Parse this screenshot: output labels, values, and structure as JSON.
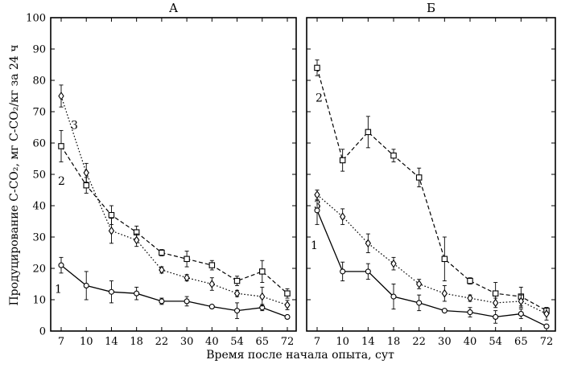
{
  "chart_data": [
    {
      "type": "line",
      "title": "А",
      "xlabel": "Время после начала опыта, сут",
      "ylabel": "Продуцирование С-СО₂, мг С-СО₂/кг за 24 ч",
      "categories": [
        "7",
        "10",
        "14",
        "18",
        "22",
        "30",
        "40",
        "54",
        "65",
        "72"
      ],
      "ylim": [
        0,
        100
      ],
      "yticks": [
        "0",
        "10",
        "20",
        "30",
        "40",
        "50",
        "60",
        "70",
        "80",
        "90",
        "100"
      ],
      "grid": false,
      "series": [
        {
          "name": "1",
          "marker": "circle",
          "dash": "solid",
          "values": [
            21,
            14.5,
            12.5,
            12,
            9.5,
            9.5,
            7.8,
            6.5,
            7.5,
            4.5
          ],
          "errors": [
            2.5,
            4.5,
            3.5,
            2,
            1,
            1.5,
            0.5,
            2.5,
            1,
            0.5
          ]
        },
        {
          "name": "2",
          "marker": "square",
          "dash": "dashed",
          "values": [
            59,
            46.5,
            37,
            31.5,
            25,
            23,
            21,
            16,
            19,
            12
          ],
          "errors": [
            5,
            2.5,
            3,
            2,
            1,
            2.5,
            1.5,
            1.5,
            3.5,
            1.5
          ]
        },
        {
          "name": "3",
          "marker": "diamond",
          "dash": "dotted",
          "values": [
            75,
            50.5,
            32,
            29,
            19.5,
            17,
            15,
            12,
            11,
            8.3
          ],
          "errors": [
            3.5,
            3,
            4,
            2,
            1,
            1,
            2,
            1,
            3,
            1.5
          ]
        }
      ]
    },
    {
      "type": "line",
      "title": "Б",
      "xlabel": "Время после начала опыта, сут",
      "ylabel": "Продуцирование С-СО₂, мг С-СО₂/кг за 24 ч",
      "categories": [
        "7",
        "10",
        "14",
        "18",
        "22",
        "30",
        "40",
        "54",
        "65",
        "72"
      ],
      "ylim": [
        0,
        100
      ],
      "yticks": [
        "0",
        "10",
        "20",
        "30",
        "40",
        "50",
        "60",
        "70",
        "80",
        "90",
        "100"
      ],
      "grid": false,
      "series": [
        {
          "name": "1",
          "marker": "circle",
          "dash": "solid",
          "values": [
            38.5,
            19,
            19,
            11,
            9,
            6.5,
            6,
            4.5,
            5.5,
            1.5
          ],
          "errors": [
            4.5,
            3,
            2.5,
            4,
            2.5,
            0.5,
            1.5,
            2,
            1.5,
            0.5
          ]
        },
        {
          "name": "2",
          "marker": "square",
          "dash": "dashed",
          "values": [
            84,
            54.5,
            63.5,
            56,
            49,
            23,
            16,
            12,
            11,
            6.5
          ],
          "errors": [
            2.5,
            3.5,
            5,
            2,
            3,
            7,
            1,
            3.5,
            3,
            1
          ]
        },
        {
          "name": "3",
          "marker": "diamond",
          "dash": "dotted",
          "values": [
            43.5,
            36.5,
            28,
            21.5,
            15,
            12,
            10.5,
            9,
            9.5,
            5.5
          ],
          "errors": [
            1.5,
            2.5,
            3,
            2,
            1.5,
            2.5,
            1,
            1.5,
            2,
            2
          ]
        }
      ]
    }
  ]
}
